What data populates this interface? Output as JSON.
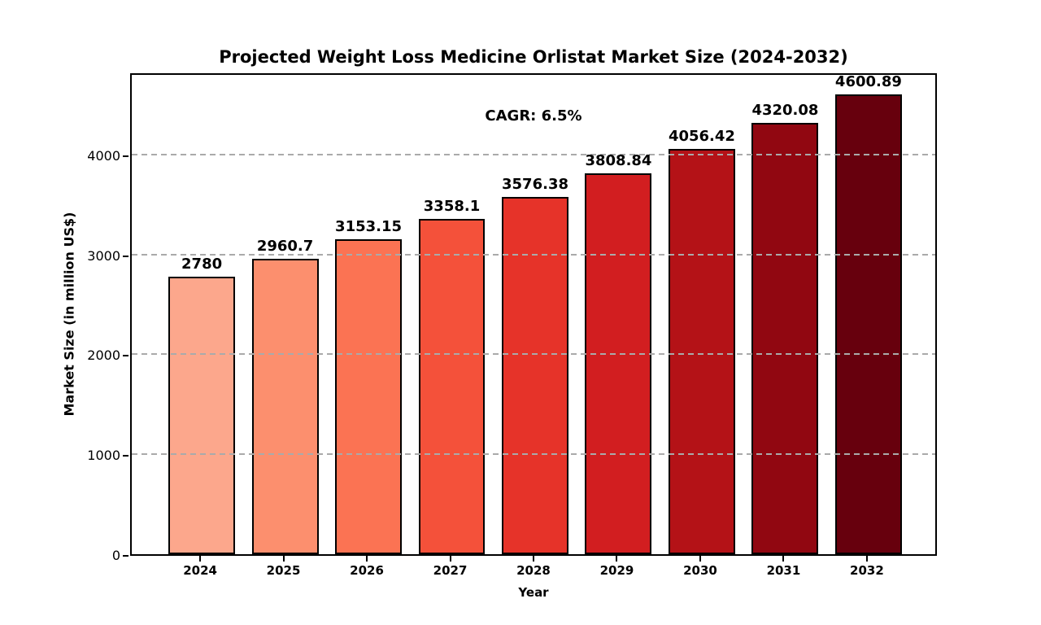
{
  "chart_data": {
    "type": "bar",
    "title": "Projected Weight Loss Medicine Orlistat Market Size (2024-2032)",
    "annotation": "CAGR: 6.5%",
    "xlabel": "Year",
    "ylabel": "Market Size (in million US$)",
    "categories": [
      "2024",
      "2025",
      "2026",
      "2027",
      "2028",
      "2029",
      "2030",
      "2031",
      "2032"
    ],
    "values": [
      2780,
      2960.7,
      3153.15,
      3358.1,
      3576.38,
      3808.84,
      4056.42,
      4320.08,
      4600.89
    ],
    "value_labels": [
      "2780",
      "2960.7",
      "3153.15",
      "3358.1",
      "3576.38",
      "3808.84",
      "4056.42",
      "4320.08",
      "4600.89"
    ],
    "bar_colors": [
      "#fca78c",
      "#fc8f6e",
      "#fb7353",
      "#f4513a",
      "#e63329",
      "#d21e20",
      "#b41217",
      "#910711",
      "#67000d"
    ],
    "bar_edge_color": "#000000",
    "ylim": [
      0,
      4830
    ],
    "yticks": [
      0,
      1000,
      2000,
      3000,
      4000
    ],
    "ytick_labels": [
      "0",
      "1000",
      "2000",
      "3000",
      "4000"
    ],
    "grid": true,
    "grid_axis": "y",
    "grid_style": "dashed",
    "grid_color": "#aaaaaa",
    "legend": "none",
    "background": "#ffffff"
  }
}
